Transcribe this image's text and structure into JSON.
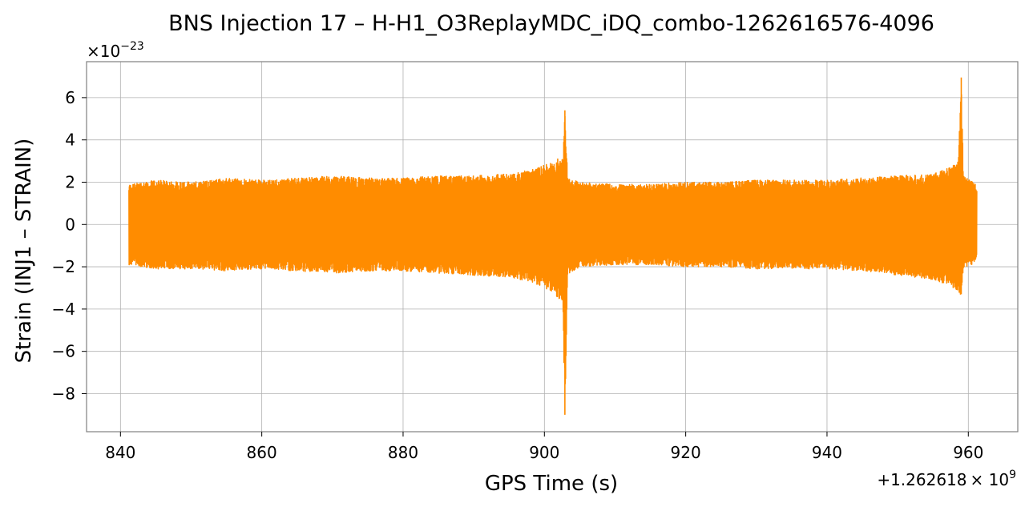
{
  "chart_data": {
    "type": "line",
    "title": "BNS Injection 17 – H-H1_O3ReplayMDC_iDQ_combo-1262616576-4096",
    "xlabel": "GPS Time (s)",
    "ylabel": "Strain (INJ1 – STRAIN)",
    "x_offset_label": "+1.262618",
    "x_offset_exp": "9",
    "y_scale_label": "×10",
    "y_scale_exp": "−23",
    "xlim": [
      835.2,
      967.0
    ],
    "ylim": [
      -9.8,
      7.7
    ],
    "x_ticks": [
      840,
      860,
      880,
      900,
      920,
      940,
      960
    ],
    "x_tick_labels": [
      "840",
      "860",
      "880",
      "900",
      "920",
      "940",
      "960"
    ],
    "y_ticks": [
      6,
      4,
      2,
      0,
      -2,
      -4,
      -6,
      -8
    ],
    "y_tick_labels": [
      "6",
      "4",
      "2",
      "0",
      "−2",
      "−4",
      "−6",
      "−8"
    ],
    "grid": true,
    "line_color": "#ff8c00",
    "series": [
      {
        "envelope": {
          "x": [
            841.2,
            845.0,
            850.0,
            855.0,
            860.0,
            865.0,
            870.0,
            875.0,
            880.0,
            885.0,
            890.0,
            895.0,
            898.0,
            900.0,
            901.5,
            902.6,
            902.9,
            903.3,
            905.0,
            910.0,
            915.0,
            920.0,
            925.0,
            930.0,
            935.0,
            940.0,
            945.0,
            950.0,
            955.0,
            957.5,
            958.6,
            959.0,
            959.3,
            961.2
          ],
          "upper": [
            1.9,
            2.1,
            2.0,
            2.2,
            2.1,
            2.2,
            2.3,
            2.2,
            2.2,
            2.3,
            2.3,
            2.4,
            2.6,
            2.8,
            3.0,
            3.3,
            5.4,
            2.2,
            2.0,
            1.9,
            1.9,
            2.0,
            2.0,
            2.1,
            2.1,
            2.1,
            2.2,
            2.3,
            2.4,
            2.7,
            3.0,
            6.95,
            2.3,
            1.9
          ],
          "lower": [
            -1.9,
            -2.1,
            -2.1,
            -2.2,
            -2.1,
            -2.2,
            -2.3,
            -2.2,
            -2.2,
            -2.3,
            -2.4,
            -2.5,
            -2.7,
            -3.0,
            -3.3,
            -3.8,
            -9.0,
            -2.4,
            -2.0,
            -1.9,
            -1.9,
            -2.0,
            -2.0,
            -2.1,
            -2.1,
            -2.1,
            -2.2,
            -2.4,
            -2.6,
            -2.9,
            -3.3,
            -3.3,
            -2.2,
            -1.7
          ]
        }
      }
    ]
  }
}
